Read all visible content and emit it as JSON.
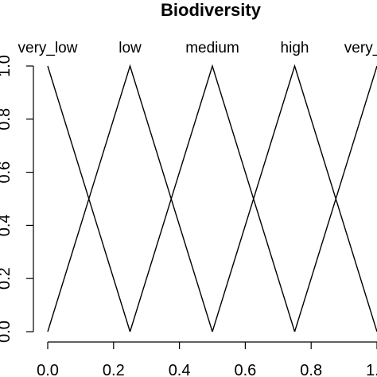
{
  "chart_data": {
    "type": "line",
    "title": "Biodiversity",
    "xlabel": "",
    "ylabel": "",
    "xlim": [
      0,
      1
    ],
    "ylim": [
      0,
      1
    ],
    "x_ticks": [
      "0.0",
      "0.2",
      "0.4",
      "0.6",
      "0.8",
      "1.0"
    ],
    "y_ticks": [
      "0.0",
      "0.2",
      "0.4",
      "0.6",
      "0.8",
      "1.0"
    ],
    "grid": false,
    "series": [
      {
        "name": "very_low",
        "x": [
          0,
          0.25
        ],
        "values": [
          1,
          0
        ]
      },
      {
        "name": "low",
        "x": [
          0,
          0.25,
          0.5
        ],
        "values": [
          0,
          1,
          0
        ]
      },
      {
        "name": "medium",
        "x": [
          0.25,
          0.5,
          0.75
        ],
        "values": [
          0,
          1,
          0
        ]
      },
      {
        "name": "high",
        "x": [
          0.5,
          0.75,
          1.0
        ],
        "values": [
          0,
          1,
          0
        ]
      },
      {
        "name": "very_high",
        "x": [
          0.75,
          1.0
        ],
        "values": [
          0,
          1
        ]
      }
    ]
  }
}
